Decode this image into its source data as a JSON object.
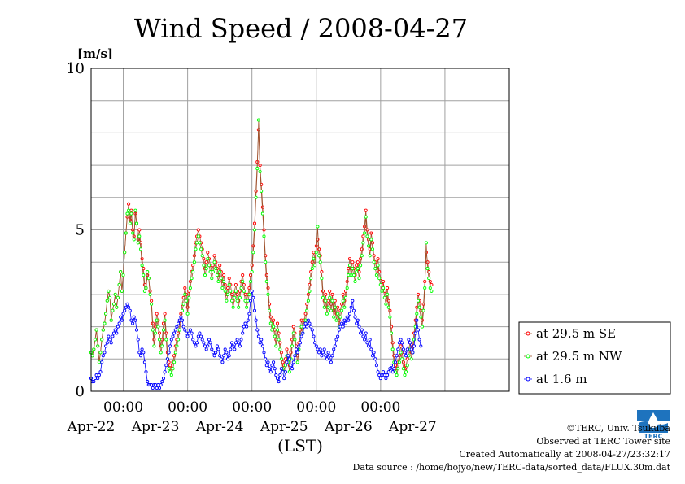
{
  "chart_data": {
    "type": "line",
    "title": "Wind Speed / 2008-04-27",
    "ylabel": "[m/s]",
    "xlabel": "(LST)",
    "ylim": [
      0,
      10
    ],
    "xlim": [
      "2008-04-21 12:00",
      "2008-04-28 00:00"
    ],
    "yticks": [
      0,
      5,
      10
    ],
    "xtick_labels": [
      "00:00",
      "00:00",
      "00:00",
      "00:00",
      "00:00"
    ],
    "date_labels": [
      "Apr-22",
      "Apr-23",
      "Apr-24",
      "Apr-25",
      "Apr-26",
      "Apr-27"
    ],
    "grid": true,
    "legend_position": "right",
    "series": [
      {
        "name": "at 29.5 m SE",
        "color": "#ff0000",
        "line_color": "#a0522d",
        "t0": "2008-04-21 12:00",
        "step_hours": 0.5,
        "values": [
          1.2,
          1.1,
          1.3,
          1.6,
          1.9,
          1.4,
          0.9,
          1.2,
          1.6,
          1.9,
          2.1,
          2.4,
          2.8,
          3.1,
          2.9,
          2.2,
          2.5,
          2.7,
          3.0,
          2.6,
          2.9,
          3.3,
          3.7,
          3.1,
          3.6,
          4.3,
          4.9,
          5.4,
          5.8,
          5.3,
          5.6,
          5.0,
          4.8,
          5.5,
          5.2,
          4.7,
          5.0,
          4.6,
          4.1,
          3.8,
          3.3,
          3.2,
          3.6,
          3.5,
          3.1,
          2.8,
          2.1,
          1.6,
          2.0,
          2.4,
          2.2,
          1.8,
          1.4,
          1.6,
          2.1,
          2.4,
          1.8,
          1.2,
          0.9,
          0.8,
          0.7,
          0.9,
          1.1,
          1.4,
          1.6,
          1.8,
          2.1,
          2.4,
          2.7,
          2.9,
          3.2,
          3.0,
          2.6,
          3.1,
          3.4,
          3.7,
          3.9,
          4.2,
          4.6,
          4.8,
          5.0,
          4.8,
          4.6,
          4.4,
          4.1,
          3.8,
          4.0,
          4.3,
          4.1,
          3.9,
          3.7,
          3.9,
          4.2,
          4.0,
          3.8,
          3.6,
          3.9,
          3.7,
          3.4,
          3.6,
          3.3,
          3.0,
          3.2,
          3.5,
          3.3,
          3.0,
          2.8,
          3.1,
          3.3,
          3.0,
          2.8,
          3.1,
          3.4,
          3.6,
          3.3,
          3.0,
          2.8,
          3.0,
          3.2,
          3.6,
          3.9,
          4.5,
          5.2,
          6.2,
          7.1,
          8.1,
          7.0,
          6.4,
          5.7,
          5.0,
          4.2,
          3.6,
          3.2,
          2.7,
          2.3,
          2.1,
          2.2,
          1.9,
          1.6,
          2.1,
          1.8,
          1.5,
          1.2,
          0.9,
          0.8,
          1.0,
          1.3,
          1.1,
          0.8,
          1.2,
          1.6,
          2.0,
          1.8,
          1.4,
          1.1,
          1.5,
          1.9,
          2.2,
          2.0,
          2.2,
          2.4,
          2.7,
          3.0,
          3.3,
          3.7,
          4.0,
          4.3,
          4.1,
          4.5,
          4.7,
          4.4,
          4.2,
          3.7,
          3.1,
          2.8,
          3.0,
          2.6,
          2.8,
          3.1,
          2.7,
          3.0,
          2.5,
          2.8,
          2.4,
          2.6,
          2.2,
          2.5,
          2.7,
          3.0,
          2.8,
          3.1,
          3.4,
          3.8,
          4.1,
          3.8,
          4.0,
          3.8,
          3.6,
          3.9,
          4.0,
          3.7,
          4.1,
          4.4,
          4.8,
          5.1,
          5.6,
          5.0,
          4.7,
          4.4,
          4.9,
          4.6,
          4.2,
          4.0,
          3.8,
          4.1,
          3.7,
          3.5,
          3.3,
          3.4,
          3.1,
          2.9,
          3.2,
          2.8,
          2.5,
          2.0,
          1.5,
          1.1,
          0.8,
          0.7,
          0.9,
          1.1,
          1.4,
          1.2,
          0.9,
          0.7,
          0.8,
          1.0,
          1.3,
          1.5,
          1.2,
          1.4,
          1.8,
          2.2,
          2.6,
          3.0,
          2.8,
          2.5,
          2.2,
          2.7,
          3.4,
          4.3,
          4.0,
          3.7,
          3.4,
          3.3
        ]
      },
      {
        "name": "at 29.5 m NW",
        "color": "#00ff00",
        "line_color": "#a0522d",
        "t0": "2008-04-21 12:00",
        "step_hours": 0.5,
        "values": [
          1.2,
          1.1,
          1.3,
          1.6,
          1.9,
          1.4,
          0.9,
          1.2,
          1.6,
          1.9,
          2.1,
          2.4,
          2.8,
          3.1,
          2.9,
          2.2,
          2.5,
          2.7,
          3.0,
          2.6,
          2.9,
          3.3,
          3.7,
          3.1,
          3.6,
          4.3,
          4.9,
          5.5,
          5.6,
          5.2,
          5.5,
          4.9,
          4.7,
          5.6,
          5.2,
          4.6,
          4.8,
          4.4,
          3.9,
          3.6,
          3.1,
          3.2,
          3.7,
          3.5,
          3.0,
          2.7,
          1.9,
          1.4,
          1.8,
          2.2,
          2.0,
          1.6,
          1.2,
          1.4,
          1.9,
          2.2,
          1.6,
          1.0,
          0.7,
          0.6,
          0.5,
          0.7,
          0.9,
          1.2,
          1.4,
          1.6,
          1.9,
          2.2,
          2.5,
          2.7,
          3.0,
          2.8,
          2.4,
          2.9,
          3.2,
          3.5,
          3.7,
          4.0,
          4.4,
          4.6,
          4.8,
          4.6,
          4.4,
          4.2,
          3.9,
          3.6,
          3.8,
          4.1,
          3.9,
          3.7,
          3.5,
          3.7,
          4.0,
          3.8,
          3.6,
          3.4,
          3.7,
          3.5,
          3.2,
          3.4,
          3.1,
          2.8,
          3.0,
          3.3,
          3.1,
          2.8,
          2.6,
          2.9,
          3.1,
          2.8,
          2.6,
          2.9,
          3.2,
          3.4,
          3.1,
          2.8,
          2.6,
          2.8,
          3.0,
          3.4,
          3.7,
          4.3,
          5.0,
          6.0,
          6.9,
          8.4,
          6.8,
          6.2,
          5.5,
          4.8,
          4.0,
          3.4,
          3.0,
          2.5,
          2.1,
          1.9,
          2.0,
          1.7,
          1.4,
          1.9,
          1.6,
          1.3,
          1.0,
          0.7,
          0.6,
          0.8,
          1.1,
          0.9,
          0.6,
          1.0,
          1.4,
          1.8,
          1.6,
          1.2,
          0.9,
          1.3,
          1.7,
          2.0,
          1.8,
          2.0,
          2.2,
          2.5,
          2.8,
          3.1,
          3.5,
          3.8,
          4.1,
          3.9,
          4.3,
          5.1,
          4.2,
          4.0,
          3.5,
          2.9,
          2.6,
          2.8,
          2.4,
          2.6,
          2.9,
          2.5,
          2.8,
          2.3,
          2.6,
          2.2,
          2.4,
          2.0,
          2.3,
          2.5,
          2.8,
          2.6,
          2.9,
          3.2,
          3.6,
          3.9,
          3.6,
          3.8,
          3.6,
          3.4,
          3.7,
          3.8,
          3.5,
          3.9,
          4.2,
          4.6,
          4.9,
          5.4,
          4.8,
          4.5,
          4.2,
          4.7,
          4.4,
          4.0,
          3.8,
          3.6,
          3.9,
          3.5,
          3.3,
          3.1,
          3.2,
          2.9,
          2.7,
          3.0,
          2.6,
          2.3,
          1.8,
          1.3,
          0.9,
          0.6,
          0.5,
          0.7,
          0.9,
          1.2,
          1.0,
          0.7,
          0.5,
          0.6,
          0.8,
          1.1,
          1.3,
          1.0,
          1.2,
          1.6,
          2.0,
          2.4,
          2.8,
          2.6,
          2.3,
          2.0,
          2.5,
          3.2,
          4.6,
          3.8,
          3.5,
          3.2,
          3.1
        ]
      },
      {
        "name": "at 1.6 m",
        "color": "#0000ff",
        "line_color": "#0000ff",
        "t0": "2008-04-21 12:00",
        "step_hours": 0.5,
        "values": [
          0.4,
          0.3,
          0.3,
          0.4,
          0.5,
          0.4,
          0.5,
          0.6,
          0.9,
          1.1,
          1.2,
          1.4,
          1.5,
          1.7,
          1.6,
          1.5,
          1.7,
          1.8,
          1.9,
          1.8,
          2.0,
          2.1,
          2.3,
          2.2,
          2.4,
          2.5,
          2.6,
          2.7,
          2.6,
          2.5,
          2.2,
          2.1,
          2.3,
          2.2,
          1.9,
          1.6,
          1.2,
          1.1,
          1.3,
          1.2,
          0.9,
          0.6,
          0.3,
          0.2,
          0.2,
          0.2,
          0.1,
          0.2,
          0.2,
          0.1,
          0.2,
          0.1,
          0.2,
          0.3,
          0.4,
          0.6,
          0.8,
          1.0,
          1.2,
          1.4,
          1.6,
          1.7,
          1.8,
          1.9,
          2.0,
          2.1,
          2.2,
          2.3,
          2.2,
          2.0,
          1.9,
          1.8,
          1.7,
          1.8,
          1.9,
          1.8,
          1.6,
          1.5,
          1.4,
          1.5,
          1.7,
          1.8,
          1.7,
          1.6,
          1.5,
          1.4,
          1.3,
          1.4,
          1.6,
          1.5,
          1.3,
          1.2,
          1.1,
          1.2,
          1.4,
          1.3,
          1.1,
          1.0,
          0.9,
          1.1,
          1.3,
          1.2,
          1.0,
          1.1,
          1.3,
          1.5,
          1.4,
          1.3,
          1.5,
          1.6,
          1.5,
          1.4,
          1.6,
          1.8,
          2.0,
          2.1,
          2.0,
          2.2,
          2.4,
          2.8,
          3.1,
          2.9,
          2.5,
          2.2,
          1.9,
          1.7,
          1.5,
          1.6,
          1.4,
          1.2,
          1.0,
          0.8,
          0.9,
          0.7,
          0.6,
          0.8,
          0.9,
          0.7,
          0.5,
          0.4,
          0.3,
          0.5,
          0.7,
          0.6,
          0.4,
          0.6,
          0.9,
          1.1,
          1.0,
          0.8,
          0.7,
          0.9,
          1.1,
          1.3,
          1.2,
          1.4,
          1.5,
          1.7,
          1.8,
          2.0,
          2.1,
          2.0,
          2.2,
          2.1,
          2.0,
          1.9,
          1.7,
          1.5,
          1.4,
          1.3,
          1.2,
          1.3,
          1.1,
          1.2,
          1.3,
          1.1,
          1.0,
          1.2,
          1.1,
          0.9,
          1.1,
          1.3,
          1.4,
          1.6,
          1.7,
          1.9,
          2.0,
          2.1,
          2.0,
          2.2,
          2.1,
          2.3,
          2.2,
          2.4,
          2.6,
          2.8,
          2.5,
          2.3,
          2.1,
          2.2,
          2.0,
          1.8,
          1.9,
          1.7,
          1.6,
          1.8,
          1.5,
          1.4,
          1.6,
          1.3,
          1.1,
          1.2,
          1.0,
          0.8,
          0.6,
          0.5,
          0.4,
          0.5,
          0.6,
          0.5,
          0.4,
          0.5,
          0.6,
          0.7,
          0.8,
          0.6,
          0.7,
          0.9,
          1.1,
          1.3,
          1.5,
          1.6,
          1.5,
          1.3,
          1.2,
          1.1,
          1.3,
          1.6,
          1.5,
          1.3,
          1.2,
          1.4,
          1.8,
          2.2,
          1.9,
          1.6,
          1.4
        ]
      }
    ]
  },
  "footer": {
    "copyright": "©TERC, Univ. Tsukuba",
    "observed": "Observed at TERC Tower site",
    "created": "Created Automatically at 2008-04-27/23:32:17",
    "source": "Data source : /home/hojyo/new/TERC-data/sorted_data/FLUX.30m.dat"
  },
  "logo": {
    "name": "TERC",
    "color": "#1e73be"
  }
}
